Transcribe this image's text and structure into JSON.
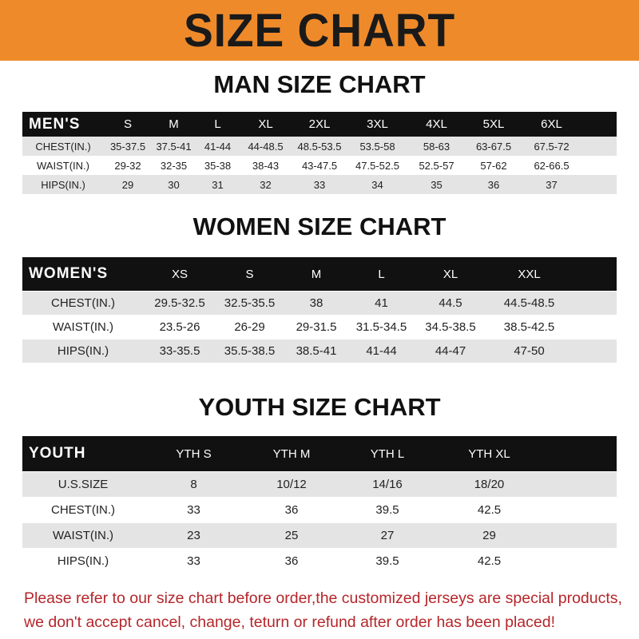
{
  "title": "SIZE CHART",
  "men": {
    "title": "MAN SIZE CHART",
    "header": [
      "MEN'S",
      "S",
      "M",
      "L",
      "XL",
      "2XL",
      "3XL",
      "4XL",
      "5XL",
      "6XL"
    ],
    "rows": [
      [
        "CHEST(IN.)",
        "35-37.5",
        "37.5-41",
        "41-44",
        "44-48.5",
        "48.5-53.5",
        "53.5-58",
        "58-63",
        "63-67.5",
        "67.5-72"
      ],
      [
        "WAIST(IN.)",
        "29-32",
        "32-35",
        "35-38",
        "38-43",
        "43-47.5",
        "47.5-52.5",
        "52.5-57",
        "57-62",
        "62-66.5"
      ],
      [
        "HIPS(IN.)",
        "29",
        "30",
        "31",
        "32",
        "33",
        "34",
        "35",
        "36",
        "37"
      ]
    ]
  },
  "women": {
    "title": "WOMEN SIZE CHART",
    "header": [
      "WOMEN'S",
      "XS",
      "S",
      "M",
      "L",
      "XL",
      "XXL"
    ],
    "rows": [
      [
        "CHEST(IN.)",
        "29.5-32.5",
        "32.5-35.5",
        "38",
        "41",
        "44.5",
        "44.5-48.5"
      ],
      [
        "WAIST(IN.)",
        "23.5-26",
        "26-29",
        "29-31.5",
        "31.5-34.5",
        "34.5-38.5",
        "38.5-42.5"
      ],
      [
        "HIPS(IN.)",
        "33-35.5",
        "35.5-38.5",
        "38.5-41",
        "41-44",
        "44-47",
        "47-50"
      ]
    ]
  },
  "youth": {
    "title": "YOUTH SIZE CHART",
    "header": [
      "YOUTH",
      "YTH S",
      "YTH M",
      "YTH L",
      "YTH XL"
    ],
    "rows": [
      [
        "U.S.SIZE",
        "8",
        "10/12",
        "14/16",
        "18/20"
      ],
      [
        "CHEST(IN.)",
        "33",
        "36",
        "39.5",
        "42.5"
      ],
      [
        "WAIST(IN.)",
        "23",
        "25",
        "27",
        "29"
      ],
      [
        "HIPS(IN.)",
        "33",
        "36",
        "39.5",
        "42.5"
      ]
    ]
  },
  "footer": [
    "Please refer to our size chart before order,the customized jerseys are special products,",
    "we don't accept cancel, change, teturn or refund after order has been placed!"
  ],
  "colors": {
    "banner": "#ef8a2a",
    "footer_text": "#b5262a"
  }
}
